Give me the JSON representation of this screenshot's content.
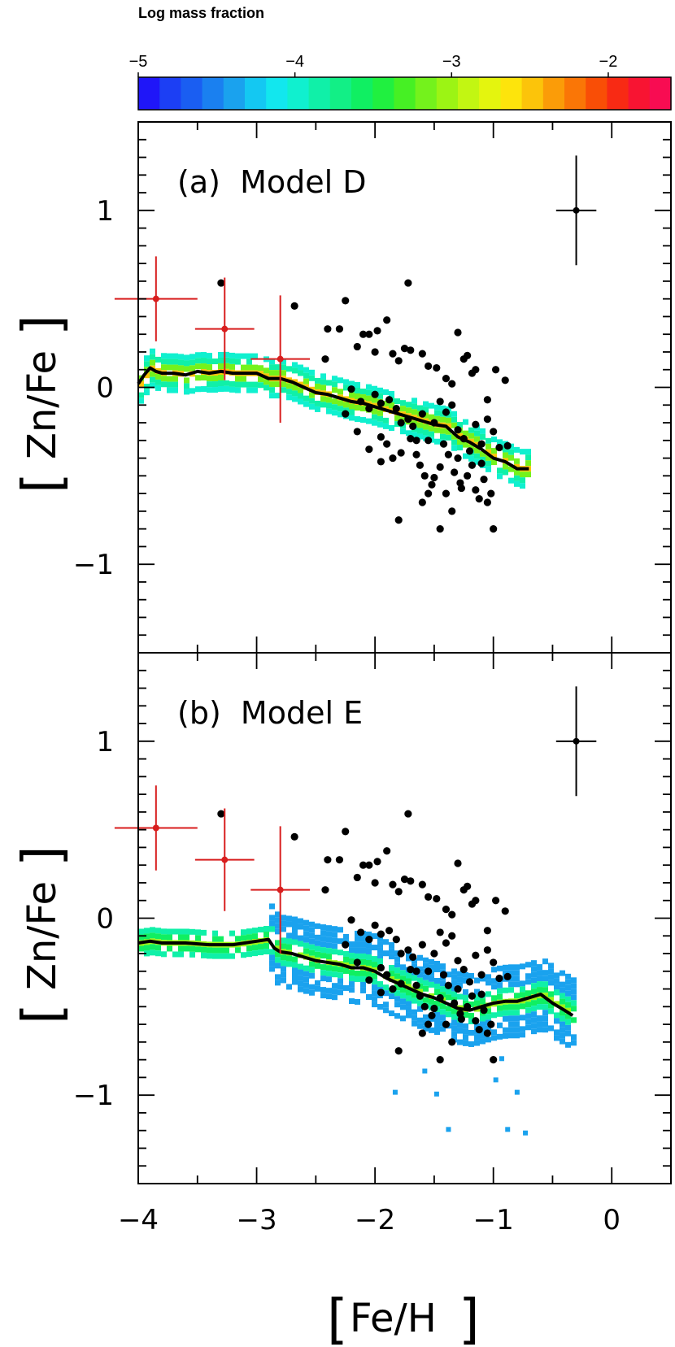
{
  "colorbar": {
    "title": "Log mass fraction",
    "ticks": [
      "−5",
      "−4",
      "−3",
      "−2"
    ],
    "tick_values": [
      -5,
      -4,
      -3,
      -2
    ],
    "range": [
      -5,
      -1.6
    ],
    "colors": [
      "#1f16f8",
      "#1c3ff4",
      "#1a5ef2",
      "#1a80f0",
      "#1aa2ee",
      "#14c8f2",
      "#12e7ee",
      "#10f0cf",
      "#10f0a8",
      "#12ef86",
      "#10ef62",
      "#20f040",
      "#46f024",
      "#74f21c",
      "#9cf414",
      "#c2f612",
      "#e4f50e",
      "#fde40c",
      "#fcc40a",
      "#fb9c08",
      "#fa7606",
      "#f94e06",
      "#f82a14",
      "#f81432",
      "#f80c52"
    ]
  },
  "x_axis": {
    "label_parts": [
      "[",
      "Fe/H",
      "]"
    ],
    "range": [
      -4.0,
      0.5
    ],
    "ticks": [
      "−4",
      "−3",
      "−2",
      "−1",
      "0"
    ],
    "tick_values": [
      -4,
      -3,
      -2,
      -1,
      0
    ]
  },
  "y_axis": {
    "label_parts": [
      "[",
      "Zn/Fe",
      "]"
    ],
    "range": [
      -1.5,
      1.5
    ],
    "ticks": [
      "1",
      "0",
      "−1"
    ],
    "tick_values": [
      1,
      0,
      -1
    ]
  },
  "chart_data": [
    {
      "type": "scatter",
      "panel_label": "(a)  Model D",
      "xlim": [
        -4.0,
        0.5
      ],
      "ylim": [
        -1.5,
        1.5
      ],
      "model_line": {
        "x": [
          -4.0,
          -3.95,
          -3.9,
          -3.85,
          -3.8,
          -3.7,
          -3.6,
          -3.5,
          -3.4,
          -3.3,
          -3.2,
          -3.1,
          -3.0,
          -2.9,
          -2.8,
          -2.7,
          -2.6,
          -2.5,
          -2.4,
          -2.3,
          -2.2,
          -2.1,
          -2.0,
          -1.9,
          -1.8,
          -1.7,
          -1.6,
          -1.5,
          -1.4,
          -1.3,
          -1.2,
          -1.1,
          -1.0,
          -0.9,
          -0.8,
          -0.7
        ],
        "y": [
          0.02,
          0.07,
          0.11,
          0.09,
          0.08,
          0.08,
          0.07,
          0.09,
          0.08,
          0.09,
          0.08,
          0.08,
          0.08,
          0.05,
          0.05,
          0.03,
          0.0,
          -0.03,
          -0.04,
          -0.06,
          -0.08,
          -0.09,
          -0.11,
          -0.13,
          -0.15,
          -0.17,
          -0.19,
          -0.21,
          -0.22,
          -0.28,
          -0.31,
          -0.35,
          -0.4,
          -0.42,
          -0.46,
          -0.46
        ]
      },
      "observations": [
        {
          "x": -3.3,
          "y": 0.59
        },
        {
          "x": -2.68,
          "y": 0.46
        },
        {
          "x": -2.3,
          "y": 0.33
        },
        {
          "x": -2.4,
          "y": 0.33
        },
        {
          "x": -2.25,
          "y": 0.49
        },
        {
          "x": -2.42,
          "y": 0.16
        },
        {
          "x": -2.15,
          "y": 0.23
        },
        {
          "x": -2.1,
          "y": 0.3
        },
        {
          "x": -2.05,
          "y": 0.3
        },
        {
          "x": -1.98,
          "y": 0.32
        },
        {
          "x": -1.9,
          "y": 0.38
        },
        {
          "x": -2.0,
          "y": 0.2
        },
        {
          "x": -1.85,
          "y": 0.19
        },
        {
          "x": -1.8,
          "y": 0.15
        },
        {
          "x": -1.75,
          "y": 0.22
        },
        {
          "x": -1.72,
          "y": 0.59
        },
        {
          "x": -1.7,
          "y": 0.21
        },
        {
          "x": -1.6,
          "y": 0.19
        },
        {
          "x": -1.55,
          "y": 0.12
        },
        {
          "x": -1.48,
          "y": 0.11
        },
        {
          "x": -1.4,
          "y": 0.05
        },
        {
          "x": -1.35,
          "y": 0.02
        },
        {
          "x": -1.3,
          "y": 0.31
        },
        {
          "x": -1.25,
          "y": 0.16
        },
        {
          "x": -1.22,
          "y": 0.18
        },
        {
          "x": -1.18,
          "y": 0.08
        },
        {
          "x": -1.15,
          "y": 0.1
        },
        {
          "x": -1.05,
          "y": -0.07
        },
        {
          "x": -0.98,
          "y": 0.1
        },
        {
          "x": -0.9,
          "y": 0.04
        },
        {
          "x": -2.2,
          "y": -0.01
        },
        {
          "x": -2.12,
          "y": -0.08
        },
        {
          "x": -2.05,
          "y": -0.12
        },
        {
          "x": -2.0,
          "y": -0.04
        },
        {
          "x": -1.95,
          "y": -0.09
        },
        {
          "x": -1.88,
          "y": -0.07
        },
        {
          "x": -1.82,
          "y": -0.12
        },
        {
          "x": -1.78,
          "y": -0.2
        },
        {
          "x": -1.72,
          "y": -0.18
        },
        {
          "x": -1.68,
          "y": -0.22
        },
        {
          "x": -1.65,
          "y": -0.3
        },
        {
          "x": -1.6,
          "y": -0.15
        },
        {
          "x": -1.55,
          "y": -0.3
        },
        {
          "x": -1.5,
          "y": -0.2
        },
        {
          "x": -1.45,
          "y": -0.08
        },
        {
          "x": -1.4,
          "y": -0.14
        },
        {
          "x": -1.35,
          "y": -0.1
        },
        {
          "x": -1.3,
          "y": -0.24
        },
        {
          "x": -1.25,
          "y": -0.29
        },
        {
          "x": -1.2,
          "y": -0.36
        },
        {
          "x": -1.15,
          "y": -0.21
        },
        {
          "x": -1.1,
          "y": -0.32
        },
        {
          "x": -1.05,
          "y": -0.18
        },
        {
          "x": -1.0,
          "y": -0.25
        },
        {
          "x": -0.95,
          "y": -0.34
        },
        {
          "x": -0.88,
          "y": -0.33
        },
        {
          "x": -2.25,
          "y": -0.15
        },
        {
          "x": -2.15,
          "y": -0.25
        },
        {
          "x": -2.05,
          "y": -0.35
        },
        {
          "x": -1.95,
          "y": -0.42
        },
        {
          "x": -1.9,
          "y": -0.32
        },
        {
          "x": -1.85,
          "y": -0.4
        },
        {
          "x": -1.78,
          "y": -0.37
        },
        {
          "x": -1.7,
          "y": -0.29
        },
        {
          "x": -1.62,
          "y": -0.44
        },
        {
          "x": -1.58,
          "y": -0.5
        },
        {
          "x": -1.55,
          "y": -0.6
        },
        {
          "x": -1.5,
          "y": -0.51
        },
        {
          "x": -1.45,
          "y": -0.45
        },
        {
          "x": -1.4,
          "y": -0.6
        },
        {
          "x": -1.38,
          "y": -0.38
        },
        {
          "x": -1.33,
          "y": -0.48
        },
        {
          "x": -1.3,
          "y": -0.4
        },
        {
          "x": -1.28,
          "y": -0.54
        },
        {
          "x": -1.22,
          "y": -0.5
        },
        {
          "x": -1.18,
          "y": -0.44
        },
        {
          "x": -1.12,
          "y": -0.63
        },
        {
          "x": -1.08,
          "y": -0.52
        },
        {
          "x": -1.02,
          "y": -0.6
        },
        {
          "x": -1.6,
          "y": -0.65
        },
        {
          "x": -1.52,
          "y": -0.55
        },
        {
          "x": -1.35,
          "y": -0.7
        },
        {
          "x": -1.27,
          "y": -0.57
        },
        {
          "x": -1.15,
          "y": -0.58
        },
        {
          "x": -1.05,
          "y": -0.65
        },
        {
          "x": -1.8,
          "y": -0.75
        },
        {
          "x": -1.45,
          "y": -0.8
        },
        {
          "x": -1.0,
          "y": -0.8
        },
        {
          "x": -1.65,
          "y": -0.38
        },
        {
          "x": -1.95,
          "y": -0.28
        },
        {
          "x": -1.42,
          "y": -0.32
        },
        {
          "x": -1.1,
          "y": -0.43
        }
      ],
      "red_errorbars": [
        {
          "x": -3.85,
          "y": 0.5,
          "xerr": 0.35,
          "yerr": 0.24
        },
        {
          "x": -3.27,
          "y": 0.33,
          "xerr": 0.25,
          "yerr": 0.29
        },
        {
          "x": -2.8,
          "y": 0.16,
          "xerr": 0.25,
          "yerr": 0.36
        }
      ],
      "reference_errorbar": {
        "x": -0.3,
        "y": 1.0,
        "xerr": 0.17,
        "yerr": 0.31
      }
    },
    {
      "type": "scatter",
      "panel_label": "(b)  Model E",
      "xlim": [
        -4.0,
        0.5
      ],
      "ylim": [
        -1.5,
        1.5
      ],
      "model_line": {
        "x": [
          -4.0,
          -3.9,
          -3.8,
          -3.6,
          -3.4,
          -3.2,
          -3.0,
          -2.9,
          -2.85,
          -2.8,
          -2.7,
          -2.6,
          -2.5,
          -2.4,
          -2.3,
          -2.2,
          -2.1,
          -2.0,
          -1.9,
          -1.8,
          -1.7,
          -1.6,
          -1.5,
          -1.4,
          -1.3,
          -1.2,
          -1.1,
          -1.0,
          -0.9,
          -0.8,
          -0.7,
          -0.6,
          -0.5,
          -0.4,
          -0.33
        ],
        "y": [
          -0.14,
          -0.13,
          -0.14,
          -0.14,
          -0.15,
          -0.15,
          -0.13,
          -0.12,
          -0.17,
          -0.19,
          -0.2,
          -0.22,
          -0.24,
          -0.25,
          -0.26,
          -0.28,
          -0.28,
          -0.3,
          -0.34,
          -0.37,
          -0.4,
          -0.43,
          -0.45,
          -0.48,
          -0.51,
          -0.52,
          -0.5,
          -0.48,
          -0.47,
          -0.47,
          -0.45,
          -0.43,
          -0.48,
          -0.52,
          -0.55
        ]
      },
      "observations": [
        {
          "x": -3.3,
          "y": 0.59
        },
        {
          "x": -2.68,
          "y": 0.46
        },
        {
          "x": -2.3,
          "y": 0.33
        },
        {
          "x": -2.4,
          "y": 0.33
        },
        {
          "x": -2.25,
          "y": 0.49
        },
        {
          "x": -2.42,
          "y": 0.16
        },
        {
          "x": -2.15,
          "y": 0.23
        },
        {
          "x": -2.1,
          "y": 0.3
        },
        {
          "x": -2.05,
          "y": 0.3
        },
        {
          "x": -1.98,
          "y": 0.32
        },
        {
          "x": -1.9,
          "y": 0.38
        },
        {
          "x": -2.0,
          "y": 0.2
        },
        {
          "x": -1.85,
          "y": 0.19
        },
        {
          "x": -1.8,
          "y": 0.15
        },
        {
          "x": -1.75,
          "y": 0.22
        },
        {
          "x": -1.72,
          "y": 0.59
        },
        {
          "x": -1.7,
          "y": 0.21
        },
        {
          "x": -1.6,
          "y": 0.19
        },
        {
          "x": -1.55,
          "y": 0.12
        },
        {
          "x": -1.48,
          "y": 0.11
        },
        {
          "x": -1.4,
          "y": 0.05
        },
        {
          "x": -1.35,
          "y": 0.02
        },
        {
          "x": -1.3,
          "y": 0.31
        },
        {
          "x": -1.25,
          "y": 0.16
        },
        {
          "x": -1.22,
          "y": 0.18
        },
        {
          "x": -1.18,
          "y": 0.08
        },
        {
          "x": -1.15,
          "y": 0.1
        },
        {
          "x": -1.05,
          "y": -0.07
        },
        {
          "x": -0.98,
          "y": 0.1
        },
        {
          "x": -0.9,
          "y": 0.04
        },
        {
          "x": -2.2,
          "y": -0.01
        },
        {
          "x": -2.12,
          "y": -0.08
        },
        {
          "x": -2.05,
          "y": -0.12
        },
        {
          "x": -2.0,
          "y": -0.04
        },
        {
          "x": -1.95,
          "y": -0.09
        },
        {
          "x": -1.88,
          "y": -0.07
        },
        {
          "x": -1.82,
          "y": -0.12
        },
        {
          "x": -1.78,
          "y": -0.2
        },
        {
          "x": -1.72,
          "y": -0.18
        },
        {
          "x": -1.68,
          "y": -0.22
        },
        {
          "x": -1.65,
          "y": -0.3
        },
        {
          "x": -1.6,
          "y": -0.15
        },
        {
          "x": -1.55,
          "y": -0.3
        },
        {
          "x": -1.5,
          "y": -0.2
        },
        {
          "x": -1.45,
          "y": -0.08
        },
        {
          "x": -1.4,
          "y": -0.14
        },
        {
          "x": -1.35,
          "y": -0.1
        },
        {
          "x": -1.3,
          "y": -0.24
        },
        {
          "x": -1.25,
          "y": -0.29
        },
        {
          "x": -1.2,
          "y": -0.36
        },
        {
          "x": -1.15,
          "y": -0.21
        },
        {
          "x": -1.1,
          "y": -0.32
        },
        {
          "x": -1.05,
          "y": -0.18
        },
        {
          "x": -1.0,
          "y": -0.25
        },
        {
          "x": -0.95,
          "y": -0.34
        },
        {
          "x": -0.88,
          "y": -0.33
        },
        {
          "x": -2.25,
          "y": -0.15
        },
        {
          "x": -2.15,
          "y": -0.25
        },
        {
          "x": -2.05,
          "y": -0.35
        },
        {
          "x": -1.95,
          "y": -0.42
        },
        {
          "x": -1.9,
          "y": -0.32
        },
        {
          "x": -1.85,
          "y": -0.4
        },
        {
          "x": -1.78,
          "y": -0.37
        },
        {
          "x": -1.7,
          "y": -0.29
        },
        {
          "x": -1.62,
          "y": -0.44
        },
        {
          "x": -1.58,
          "y": -0.5
        },
        {
          "x": -1.55,
          "y": -0.6
        },
        {
          "x": -1.5,
          "y": -0.51
        },
        {
          "x": -1.45,
          "y": -0.45
        },
        {
          "x": -1.4,
          "y": -0.6
        },
        {
          "x": -1.38,
          "y": -0.38
        },
        {
          "x": -1.33,
          "y": -0.48
        },
        {
          "x": -1.3,
          "y": -0.4
        },
        {
          "x": -1.28,
          "y": -0.54
        },
        {
          "x": -1.22,
          "y": -0.5
        },
        {
          "x": -1.18,
          "y": -0.44
        },
        {
          "x": -1.12,
          "y": -0.63
        },
        {
          "x": -1.08,
          "y": -0.52
        },
        {
          "x": -1.02,
          "y": -0.6
        },
        {
          "x": -1.6,
          "y": -0.65
        },
        {
          "x": -1.52,
          "y": -0.55
        },
        {
          "x": -1.35,
          "y": -0.7
        },
        {
          "x": -1.27,
          "y": -0.57
        },
        {
          "x": -1.15,
          "y": -0.58
        },
        {
          "x": -1.05,
          "y": -0.65
        },
        {
          "x": -1.8,
          "y": -0.75
        },
        {
          "x": -1.45,
          "y": -0.8
        },
        {
          "x": -1.0,
          "y": -0.8
        },
        {
          "x": -1.65,
          "y": -0.38
        },
        {
          "x": -1.95,
          "y": -0.28
        },
        {
          "x": -1.42,
          "y": -0.32
        },
        {
          "x": -1.1,
          "y": -0.43
        }
      ],
      "red_errorbars": [
        {
          "x": -3.85,
          "y": 0.51,
          "xerr": 0.35,
          "yerr": 0.24
        },
        {
          "x": -3.27,
          "y": 0.33,
          "xerr": 0.25,
          "yerr": 0.29
        },
        {
          "x": -2.8,
          "y": 0.16,
          "xerr": 0.25,
          "yerr": 0.36
        }
      ],
      "reference_errorbar": {
        "x": -0.3,
        "y": 1.0,
        "xerr": 0.17,
        "yerr": 0.31
      }
    }
  ]
}
